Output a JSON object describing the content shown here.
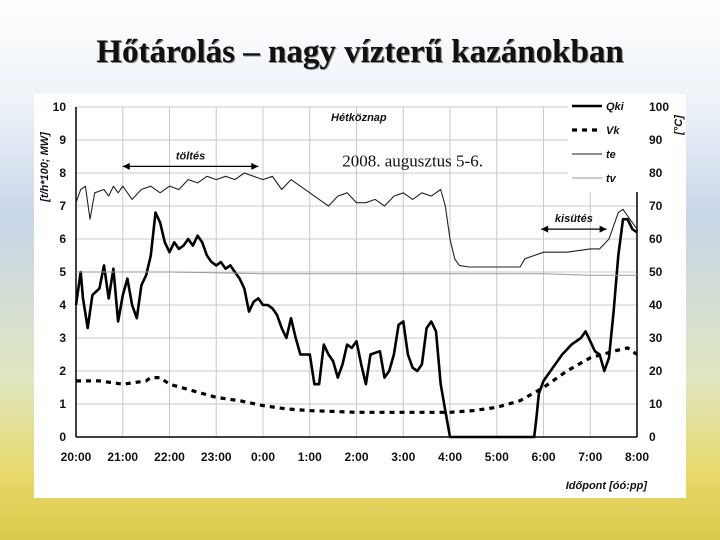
{
  "slide": {
    "title": "Hőtárolás – nagy vízterű kazánokban"
  },
  "chart_data": {
    "type": "line",
    "title": "Hétköznap",
    "subtitle": "2008. augusztus 5-6.",
    "ylabel_left": "[t/h*100; MW]",
    "ylabel_right": "[°C]",
    "xlabel": "Időpont [óó:pp]",
    "ylim_left": [
      0,
      10
    ],
    "ylim_right": [
      0,
      100
    ],
    "y_ticks_left": [
      "0",
      "1",
      "2",
      "3",
      "4",
      "5",
      "6",
      "7",
      "8",
      "9",
      "10"
    ],
    "y_ticks_right": [
      "0",
      "10",
      "20",
      "30",
      "40",
      "50",
      "60",
      "70",
      "80",
      "90",
      "100"
    ],
    "x_ticks": [
      "20:00",
      "21:00",
      "22:00",
      "23:00",
      "0:00",
      "1:00",
      "2:00",
      "3:00",
      "4:00",
      "5:00",
      "6:00",
      "7:00",
      "8:00"
    ],
    "grid": true,
    "legend_position": "top-right",
    "annotations": [
      "töltés",
      "kisütés"
    ],
    "series": [
      {
        "name": "Qki",
        "axis": "left",
        "style": "solid-thick",
        "color": "#000000",
        "points": [
          [
            0,
            4.0
          ],
          [
            0.1,
            5.0
          ],
          [
            0.15,
            4.2
          ],
          [
            0.25,
            3.3
          ],
          [
            0.35,
            4.3
          ],
          [
            0.5,
            4.5
          ],
          [
            0.6,
            5.2
          ],
          [
            0.7,
            4.2
          ],
          [
            0.8,
            5.1
          ],
          [
            0.9,
            3.5
          ],
          [
            1.0,
            4.3
          ],
          [
            1.1,
            4.8
          ],
          [
            1.2,
            4.0
          ],
          [
            1.3,
            3.6
          ],
          [
            1.4,
            4.6
          ],
          [
            1.5,
            4.9
          ],
          [
            1.6,
            5.5
          ],
          [
            1.7,
            6.8
          ],
          [
            1.8,
            6.5
          ],
          [
            1.9,
            5.9
          ],
          [
            2.0,
            5.6
          ],
          [
            2.1,
            5.9
          ],
          [
            2.2,
            5.7
          ],
          [
            2.3,
            5.8
          ],
          [
            2.4,
            6.0
          ],
          [
            2.5,
            5.8
          ],
          [
            2.6,
            6.1
          ],
          [
            2.7,
            5.9
          ],
          [
            2.8,
            5.5
          ],
          [
            2.9,
            5.3
          ],
          [
            3.0,
            5.2
          ],
          [
            3.1,
            5.3
          ],
          [
            3.2,
            5.1
          ],
          [
            3.3,
            5.2
          ],
          [
            3.4,
            5.0
          ],
          [
            3.5,
            4.8
          ],
          [
            3.6,
            4.5
          ],
          [
            3.7,
            3.8
          ],
          [
            3.8,
            4.1
          ],
          [
            3.9,
            4.2
          ],
          [
            4.0,
            4.0
          ],
          [
            4.1,
            4.0
          ],
          [
            4.2,
            3.9
          ],
          [
            4.3,
            3.7
          ],
          [
            4.4,
            3.3
          ],
          [
            4.5,
            3.0
          ],
          [
            4.6,
            3.6
          ],
          [
            4.7,
            3.0
          ],
          [
            4.8,
            2.5
          ],
          [
            4.9,
            2.5
          ],
          [
            5.0,
            2.5
          ],
          [
            5.1,
            1.6
          ],
          [
            5.2,
            1.6
          ],
          [
            5.3,
            2.8
          ],
          [
            5.4,
            2.5
          ],
          [
            5.5,
            2.3
          ],
          [
            5.6,
            1.8
          ],
          [
            5.7,
            2.2
          ],
          [
            5.8,
            2.8
          ],
          [
            5.9,
            2.7
          ],
          [
            6.0,
            2.9
          ],
          [
            6.1,
            2.2
          ],
          [
            6.2,
            1.6
          ],
          [
            6.3,
            2.5
          ],
          [
            6.5,
            2.6
          ],
          [
            6.6,
            1.8
          ],
          [
            6.7,
            2.0
          ],
          [
            6.8,
            2.5
          ],
          [
            6.9,
            3.4
          ],
          [
            7.0,
            3.5
          ],
          [
            7.1,
            2.5
          ],
          [
            7.2,
            2.1
          ],
          [
            7.3,
            2.0
          ],
          [
            7.4,
            2.2
          ],
          [
            7.5,
            3.3
          ],
          [
            7.6,
            3.5
          ],
          [
            7.7,
            3.2
          ],
          [
            7.8,
            1.6
          ],
          [
            7.9,
            0.8
          ],
          [
            8.0,
            0
          ],
          [
            9.0,
            0
          ],
          [
            9.8,
            0
          ],
          [
            9.85,
            0.6
          ],
          [
            9.9,
            1.3
          ],
          [
            10.0,
            1.7
          ],
          [
            10.2,
            2.1
          ],
          [
            10.4,
            2.5
          ],
          [
            10.6,
            2.8
          ],
          [
            10.8,
            3.0
          ],
          [
            10.9,
            3.2
          ],
          [
            11.0,
            2.9
          ],
          [
            11.1,
            2.6
          ],
          [
            11.2,
            2.5
          ],
          [
            11.3,
            2.0
          ],
          [
            11.4,
            2.4
          ],
          [
            11.5,
            3.8
          ],
          [
            11.6,
            5.5
          ],
          [
            11.7,
            6.6
          ],
          [
            11.8,
            6.6
          ],
          [
            11.9,
            6.3
          ],
          [
            12.0,
            6.2
          ]
        ]
      },
      {
        "name": "Vk",
        "axis": "left",
        "style": "dotted-thick",
        "color": "#000000",
        "points": [
          [
            0,
            1.7
          ],
          [
            0.5,
            1.7
          ],
          [
            1.0,
            1.6
          ],
          [
            1.5,
            1.7
          ],
          [
            1.6,
            1.8
          ],
          [
            1.8,
            1.8
          ],
          [
            2.0,
            1.6
          ],
          [
            2.5,
            1.4
          ],
          [
            3.0,
            1.2
          ],
          [
            3.5,
            1.1
          ],
          [
            4.0,
            0.95
          ],
          [
            4.5,
            0.85
          ],
          [
            5.0,
            0.8
          ],
          [
            6.0,
            0.75
          ],
          [
            7.0,
            0.75
          ],
          [
            8.0,
            0.75
          ],
          [
            8.5,
            0.8
          ],
          [
            9.0,
            0.9
          ],
          [
            9.5,
            1.1
          ],
          [
            10.0,
            1.5
          ],
          [
            10.5,
            2.0
          ],
          [
            11.0,
            2.4
          ],
          [
            11.5,
            2.6
          ],
          [
            11.8,
            2.7
          ],
          [
            12.0,
            2.5
          ]
        ]
      },
      {
        "name": "te",
        "axis": "right",
        "style": "solid-thin",
        "color": "#222222",
        "points": [
          [
            0,
            71
          ],
          [
            0.1,
            75
          ],
          [
            0.2,
            76
          ],
          [
            0.3,
            66
          ],
          [
            0.4,
            74
          ],
          [
            0.6,
            75
          ],
          [
            0.7,
            73
          ],
          [
            0.8,
            76
          ],
          [
            0.9,
            74
          ],
          [
            1.0,
            76
          ],
          [
            1.2,
            72
          ],
          [
            1.4,
            75
          ],
          [
            1.6,
            76
          ],
          [
            1.8,
            74
          ],
          [
            2.0,
            76
          ],
          [
            2.2,
            75
          ],
          [
            2.4,
            78
          ],
          [
            2.6,
            77
          ],
          [
            2.8,
            79
          ],
          [
            3.0,
            78
          ],
          [
            3.2,
            79
          ],
          [
            3.4,
            78
          ],
          [
            3.6,
            80
          ],
          [
            3.8,
            79
          ],
          [
            4.0,
            78
          ],
          [
            4.2,
            79
          ],
          [
            4.4,
            75
          ],
          [
            4.6,
            78
          ],
          [
            4.8,
            76
          ],
          [
            5.0,
            74
          ],
          [
            5.2,
            72
          ],
          [
            5.4,
            70
          ],
          [
            5.6,
            73
          ],
          [
            5.8,
            74
          ],
          [
            6.0,
            71
          ],
          [
            6.2,
            71
          ],
          [
            6.4,
            72
          ],
          [
            6.6,
            70
          ],
          [
            6.8,
            73
          ],
          [
            7.0,
            74
          ],
          [
            7.2,
            72
          ],
          [
            7.4,
            74
          ],
          [
            7.6,
            73
          ],
          [
            7.8,
            75
          ],
          [
            7.9,
            70
          ],
          [
            8.0,
            60
          ],
          [
            8.1,
            54
          ],
          [
            8.2,
            52
          ],
          [
            8.4,
            51.5
          ],
          [
            9.0,
            51.5
          ],
          [
            9.5,
            51.5
          ],
          [
            9.6,
            54
          ],
          [
            9.8,
            55
          ],
          [
            10.0,
            56
          ],
          [
            10.5,
            56
          ],
          [
            11.0,
            57
          ],
          [
            11.2,
            57
          ],
          [
            11.4,
            60
          ],
          [
            11.5,
            64
          ],
          [
            11.6,
            68
          ],
          [
            11.7,
            69
          ],
          [
            11.8,
            67
          ],
          [
            12.0,
            63
          ]
        ]
      },
      {
        "name": "tv",
        "axis": "right",
        "style": "solid-hairline",
        "color": "#9a9a9a",
        "points": [
          [
            0,
            50
          ],
          [
            2,
            50
          ],
          [
            4,
            49.5
          ],
          [
            6,
            49.5
          ],
          [
            8,
            49.5
          ],
          [
            9,
            49.5
          ],
          [
            10,
            49.5
          ],
          [
            11,
            49
          ],
          [
            12,
            49
          ]
        ]
      }
    ]
  }
}
